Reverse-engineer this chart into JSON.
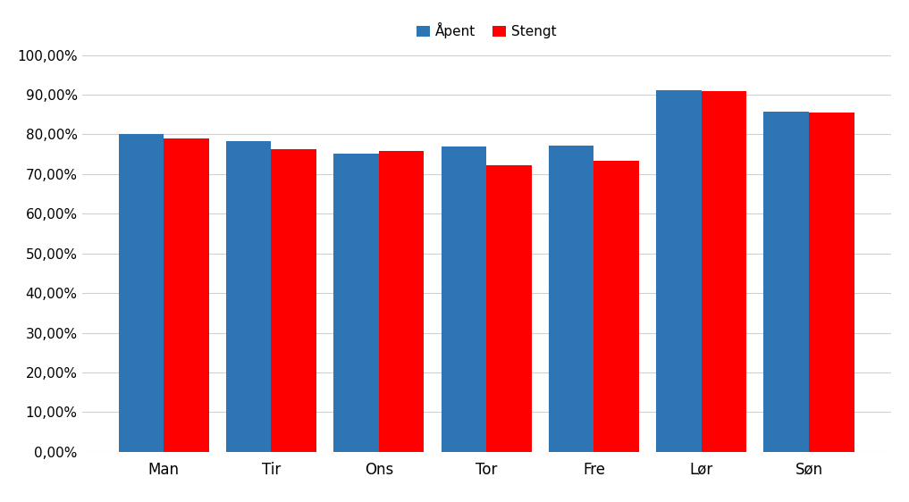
{
  "categories": [
    "Man",
    "Tir",
    "Ons",
    "Tor",
    "Fre",
    "Lør",
    "Søn"
  ],
  "apent": [
    0.8,
    0.782,
    0.752,
    0.77,
    0.772,
    0.912,
    0.858
  ],
  "stengt": [
    0.79,
    0.762,
    0.758,
    0.722,
    0.733,
    0.908,
    0.856
  ],
  "apent_color": "#2E75B6",
  "stengt_color": "#FF0000",
  "legend_labels": [
    "Åpent",
    "Stengt"
  ],
  "ylim": [
    0.0,
    1.05
  ],
  "yticks": [
    0.0,
    0.1,
    0.2,
    0.3,
    0.4,
    0.5,
    0.6,
    0.7,
    0.8,
    0.9,
    1.0
  ],
  "background_color": "#FFFFFF",
  "grid_color": "#D0D0D0",
  "bar_width": 0.42
}
